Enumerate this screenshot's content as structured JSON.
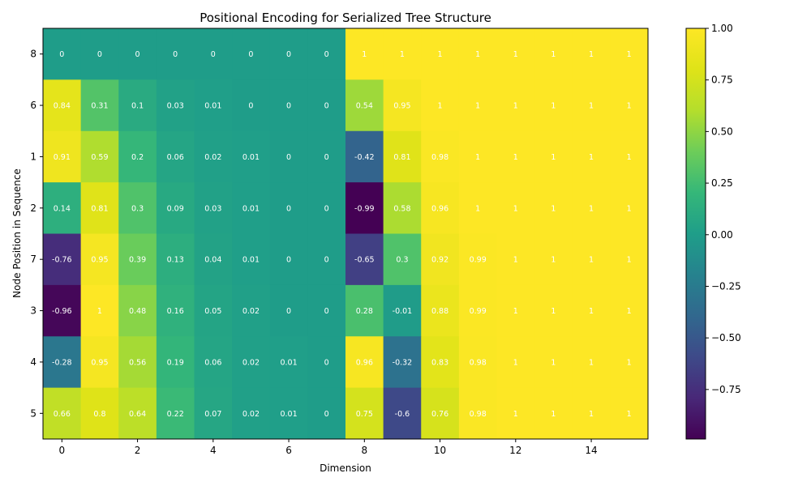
{
  "chart_data": {
    "type": "heatmap",
    "title": "Positional Encoding for Serialized Tree Structure",
    "xlabel": "Dimension",
    "ylabel": "Node Position in Sequence",
    "rows": [
      "8",
      "6",
      "1",
      "2",
      "7",
      "3",
      "4",
      "5"
    ],
    "columns": [
      0,
      1,
      2,
      3,
      4,
      5,
      6,
      7,
      8,
      9,
      10,
      11,
      12,
      13,
      14,
      15
    ],
    "x_ticks": [
      "0",
      "2",
      "4",
      "6",
      "8",
      "10",
      "12",
      "14"
    ],
    "values": [
      [
        0.0,
        0.0,
        0.0,
        0.0,
        0.0,
        0.0,
        0.0,
        0.0,
        1.0,
        1.0,
        1.0,
        1.0,
        1.0,
        1.0,
        1.0,
        1.0
      ],
      [
        0.84,
        0.31,
        0.1,
        0.03,
        0.01,
        0.0,
        0.0,
        0.0,
        0.54,
        0.95,
        1.0,
        1.0,
        1.0,
        1.0,
        1.0,
        1.0
      ],
      [
        0.91,
        0.59,
        0.2,
        0.06,
        0.02,
        0.01,
        0.0,
        0.0,
        -0.42,
        0.81,
        0.98,
        1.0,
        1.0,
        1.0,
        1.0,
        1.0
      ],
      [
        0.14,
        0.81,
        0.3,
        0.09,
        0.03,
        0.01,
        0.0,
        0.0,
        -0.99,
        0.58,
        0.96,
        1.0,
        1.0,
        1.0,
        1.0,
        1.0
      ],
      [
        -0.76,
        0.95,
        0.39,
        0.13,
        0.04,
        0.01,
        0.0,
        0.0,
        -0.65,
        0.3,
        0.92,
        0.99,
        1.0,
        1.0,
        1.0,
        1.0
      ],
      [
        -0.96,
        1.0,
        0.48,
        0.16,
        0.05,
        0.02,
        0.0,
        0.0,
        0.28,
        -0.01,
        0.88,
        0.99,
        1.0,
        1.0,
        1.0,
        1.0
      ],
      [
        -0.28,
        0.95,
        0.56,
        0.19,
        0.06,
        0.02,
        0.01,
        0.0,
        0.96,
        -0.32,
        0.83,
        0.98,
        1.0,
        1.0,
        1.0,
        1.0
      ],
      [
        0.66,
        0.8,
        0.64,
        0.22,
        0.07,
        0.02,
        0.01,
        0.0,
        0.75,
        -0.6,
        0.76,
        0.98,
        1.0,
        1.0,
        1.0,
        1.0
      ]
    ],
    "colormap": "viridis",
    "vmin": -0.99,
    "vmax": 1.0,
    "colorbar_ticks": [
      "−0.75",
      "−0.50",
      "−0.25",
      "0.00",
      "0.25",
      "0.50",
      "0.75",
      "1.00"
    ],
    "colorbar_tick_values": [
      -0.75,
      -0.5,
      -0.25,
      0.0,
      0.25,
      0.5,
      0.75,
      1.0
    ],
    "grid": false
  }
}
